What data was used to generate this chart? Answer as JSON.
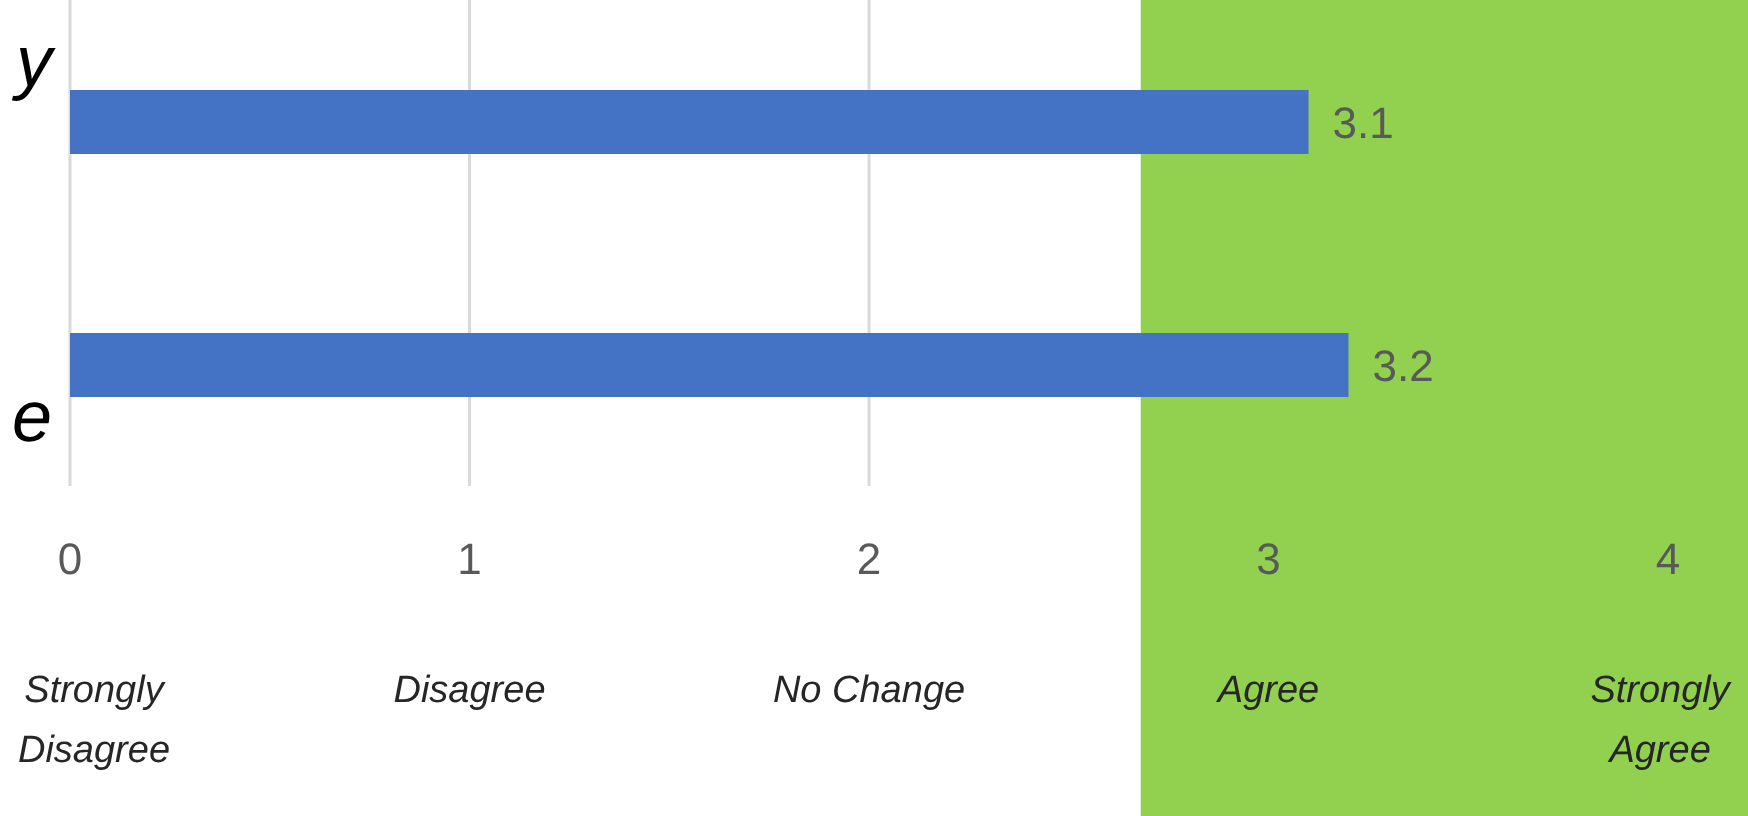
{
  "chart_data": {
    "type": "bar",
    "orientation": "horizontal",
    "categories": [
      "y",
      "e"
    ],
    "values": [
      3.1,
      3.2
    ],
    "color": "#4472c4",
    "data_labels": true,
    "xlim": [
      0,
      4.2
    ],
    "xticks": [
      0,
      1,
      2,
      3,
      4
    ],
    "grid": "x",
    "bands": [
      {
        "axis": "x",
        "from": 2.68,
        "to": 4.2,
        "color": "#92d050"
      }
    ],
    "annotations": [
      "Strongly Disagree",
      "Disagree",
      "No Change",
      "Agree",
      "Strongly Agree"
    ]
  }
}
